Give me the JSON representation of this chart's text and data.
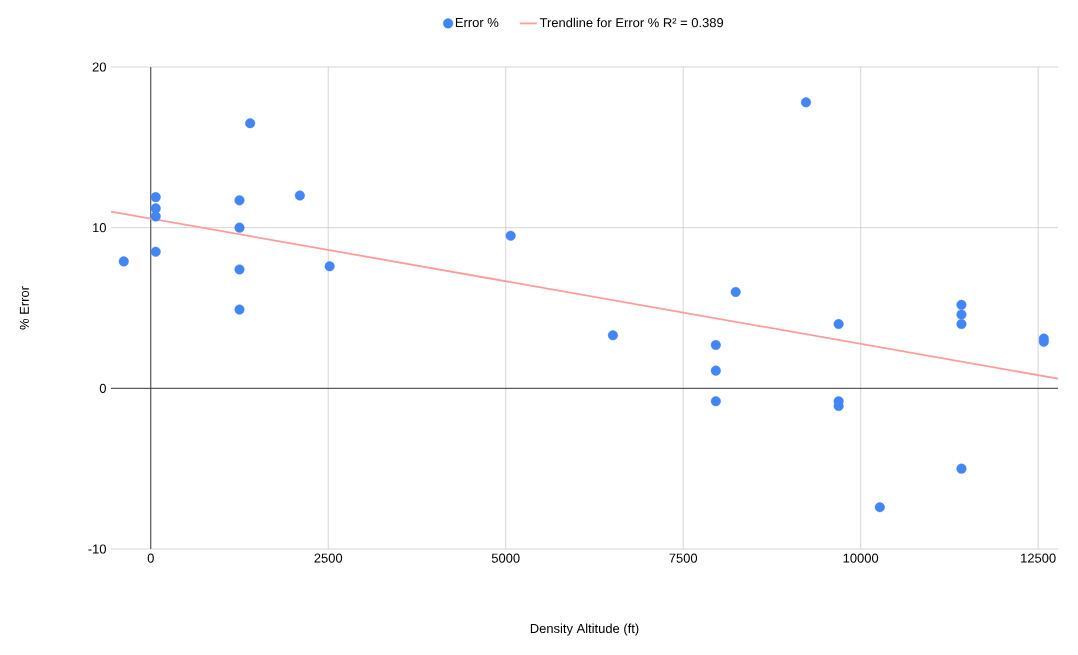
{
  "chart_data": {
    "type": "scatter",
    "xlabel": "Density Altitude (ft)",
    "ylabel": "% Error",
    "xlim": [
      -560,
      12780
    ],
    "ylim": [
      -10,
      20
    ],
    "xticks": [
      0,
      2500,
      5000,
      7500,
      10000,
      12500
    ],
    "yticks": [
      -10,
      0,
      10,
      20
    ],
    "grid": true,
    "legend": "top",
    "series": [
      {
        "name": "Error %",
        "color": "#4285f4",
        "marker": "circle",
        "x": [
          -380,
          70,
          70,
          70,
          70,
          1250,
          1250,
          1250,
          1250,
          1400,
          2100,
          2520,
          5070,
          6510,
          7960,
          7960,
          7960,
          8240,
          9230,
          9690,
          9690,
          9690,
          10270,
          11420,
          11420,
          11420,
          11420,
          12580,
          12580
        ],
        "values": [
          7.9,
          11.9,
          11.2,
          10.7,
          8.5,
          11.7,
          10.0,
          7.4,
          4.9,
          16.5,
          12.0,
          7.6,
          9.5,
          3.3,
          2.7,
          1.1,
          -0.8,
          6.0,
          17.8,
          4.0,
          -0.8,
          -1.1,
          -7.4,
          5.2,
          4.6,
          4.0,
          -5.0,
          3.1,
          2.9
        ]
      },
      {
        "name": "Trendline for Error % R² = 0.389",
        "type": "line",
        "color": "#ff9b9b",
        "line_style": "solid",
        "marker": "none",
        "x": [
          -560,
          12780
        ],
        "values": [
          11.0,
          0.6
        ]
      }
    ]
  }
}
